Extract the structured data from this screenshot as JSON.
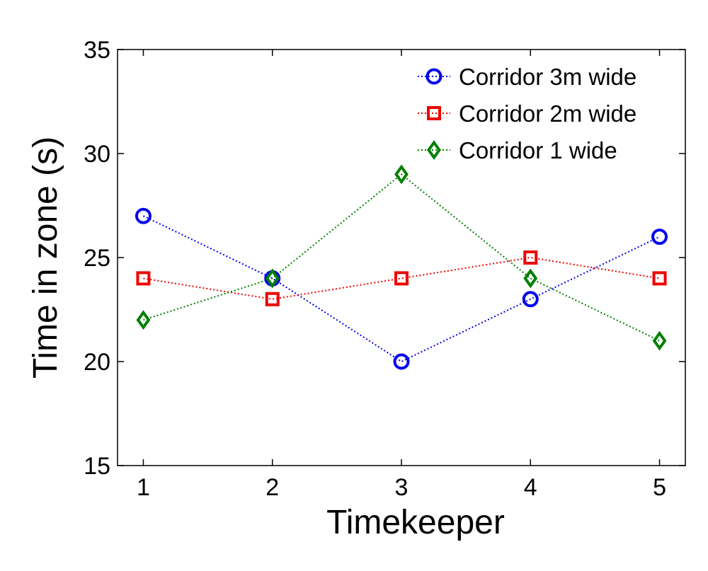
{
  "chart_data": {
    "type": "line",
    "xlabel": "Timekeeper",
    "ylabel": "Time in zone (s)",
    "x": [
      1,
      2,
      3,
      4,
      5
    ],
    "xlim": [
      0.8,
      5.2
    ],
    "ylim": [
      15,
      35
    ],
    "xticks": [
      1,
      2,
      3,
      4,
      5
    ],
    "yticks": [
      15,
      20,
      25,
      30,
      35
    ],
    "grid": false,
    "legend_position": "top-right",
    "series": [
      {
        "name": "Corridor 3m wide",
        "values": [
          27,
          24,
          20,
          23,
          26
        ],
        "color": "#0000ee",
        "marker": "circle",
        "line_style": "dotted"
      },
      {
        "name": "Corridor 2m wide",
        "values": [
          24,
          23,
          24,
          25,
          24
        ],
        "color": "#ee0000",
        "marker": "square",
        "line_style": "dotted"
      },
      {
        "name": "Corridor 1 wide",
        "values": [
          22,
          24,
          29,
          24,
          21
        ],
        "color": "#008000",
        "marker": "diamond",
        "line_style": "dotted"
      }
    ]
  }
}
